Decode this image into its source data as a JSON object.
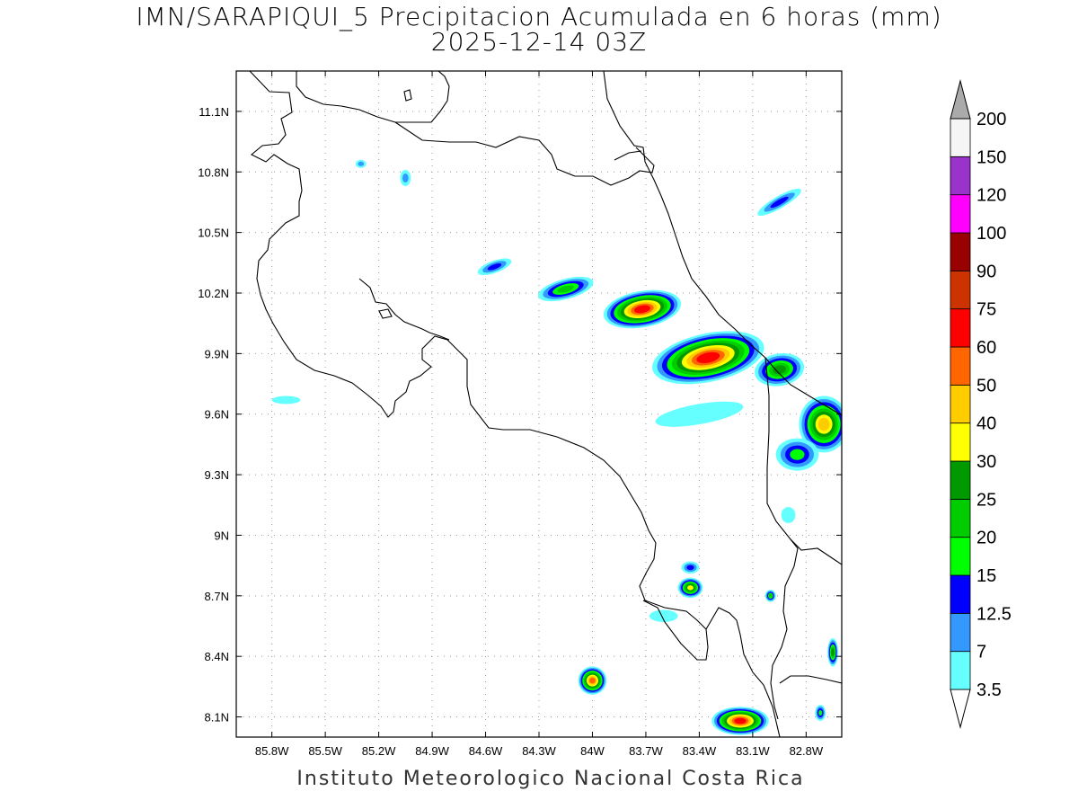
{
  "title": {
    "line1": "IMN/SARAPIQUI_5 Precipitacion Acumulada en 6 horas (mm)",
    "line2": "2025-12-14 03Z"
  },
  "footer": "Instituto Meteorologico Nacional Costa Rica",
  "map": {
    "lon_range": [
      -86.0,
      -82.6
    ],
    "lat_range": [
      8.0,
      11.3
    ],
    "lat_ticks": [
      {
        "value": 11.1,
        "label": "11.1N"
      },
      {
        "value": 10.8,
        "label": "10.8N"
      },
      {
        "value": 10.5,
        "label": "10.5N"
      },
      {
        "value": 10.2,
        "label": "10.2N"
      },
      {
        "value": 9.9,
        "label": "9.9N"
      },
      {
        "value": 9.6,
        "label": "9.6N"
      },
      {
        "value": 9.3,
        "label": "9.3N"
      },
      {
        "value": 9.0,
        "label": "9N"
      },
      {
        "value": 8.7,
        "label": "8.7N"
      },
      {
        "value": 8.4,
        "label": "8.4N"
      },
      {
        "value": 8.1,
        "label": "8.1N"
      }
    ],
    "lon_ticks": [
      {
        "value": -85.8,
        "label": "85.8W"
      },
      {
        "value": -85.5,
        "label": "85.5W"
      },
      {
        "value": -85.2,
        "label": "85.2W"
      },
      {
        "value": -84.9,
        "label": "84.9W"
      },
      {
        "value": -84.6,
        "label": "84.6W"
      },
      {
        "value": -84.3,
        "label": "84.3W"
      },
      {
        "value": -84.0,
        "label": "84W"
      },
      {
        "value": -83.7,
        "label": "83.7W"
      },
      {
        "value": -83.4,
        "label": "83.4W"
      },
      {
        "value": -83.1,
        "label": "83.1W"
      },
      {
        "value": -82.8,
        "label": "82.8W"
      }
    ],
    "grid": true
  },
  "colorbar": {
    "unit": "mm",
    "levels": [
      {
        "label": "3.5",
        "color": "#66ffff"
      },
      {
        "label": "7",
        "color": "#3399ff"
      },
      {
        "label": "12.5",
        "color": "#0000ff"
      },
      {
        "label": "15",
        "color": "#00ff00"
      },
      {
        "label": "20",
        "color": "#00cc00"
      },
      {
        "label": "25",
        "color": "#009900"
      },
      {
        "label": "30",
        "color": "#ffff00"
      },
      {
        "label": "40",
        "color": "#ffcc00"
      },
      {
        "label": "50",
        "color": "#ff6600"
      },
      {
        "label": "60",
        "color": "#ff0000"
      },
      {
        "label": "75",
        "color": "#cc3300"
      },
      {
        "label": "90",
        "color": "#990000"
      },
      {
        "label": "100",
        "color": "#ff00ff"
      },
      {
        "label": "120",
        "color": "#9933cc"
      },
      {
        "label": "150",
        "color": "#f5f5f5"
      },
      {
        "label": "200",
        "color": "#aaaaaa"
      }
    ]
  },
  "precip_cells": [
    {
      "lon": -83.72,
      "lat": 10.12,
      "rx": 0.22,
      "ry": 0.09,
      "rot": -10,
      "peak": 60
    },
    {
      "lon": -83.35,
      "lat": 9.88,
      "rx": 0.32,
      "ry": 0.12,
      "rot": -12,
      "peak": 60
    },
    {
      "lon": -82.95,
      "lat": 9.82,
      "rx": 0.14,
      "ry": 0.08,
      "rot": -10,
      "peak": 25
    },
    {
      "lon": -82.7,
      "lat": 9.55,
      "rx": 0.14,
      "ry": 0.14,
      "rot": 0,
      "peak": 40
    },
    {
      "lon": -82.85,
      "lat": 9.4,
      "rx": 0.12,
      "ry": 0.08,
      "rot": 0,
      "peak": 15
    },
    {
      "lon": -84.15,
      "lat": 10.22,
      "rx": 0.16,
      "ry": 0.05,
      "rot": -15,
      "peak": 20
    },
    {
      "lon": -84.55,
      "lat": 10.33,
      "rx": 0.1,
      "ry": 0.03,
      "rot": -20,
      "peak": 12.5
    },
    {
      "lon": -82.95,
      "lat": 10.65,
      "rx": 0.14,
      "ry": 0.03,
      "rot": -30,
      "peak": 12.5
    },
    {
      "lon": -83.45,
      "lat": 8.74,
      "rx": 0.07,
      "ry": 0.05,
      "rot": 0,
      "peak": 30
    },
    {
      "lon": -83.45,
      "lat": 8.84,
      "rx": 0.05,
      "ry": 0.03,
      "rot": 0,
      "peak": 12.5
    },
    {
      "lon": -84.0,
      "lat": 8.28,
      "rx": 0.08,
      "ry": 0.07,
      "rot": 0,
      "peak": 50
    },
    {
      "lon": -83.17,
      "lat": 8.08,
      "rx": 0.16,
      "ry": 0.07,
      "rot": 0,
      "peak": 60
    },
    {
      "lon": -82.65,
      "lat": 8.42,
      "rx": 0.03,
      "ry": 0.07,
      "rot": 0,
      "peak": 25
    },
    {
      "lon": -83.0,
      "lat": 8.7,
      "rx": 0.03,
      "ry": 0.03,
      "rot": 0,
      "peak": 20
    },
    {
      "lon": -82.72,
      "lat": 8.12,
      "rx": 0.03,
      "ry": 0.04,
      "rot": 0,
      "peak": 15
    },
    {
      "lon": -85.05,
      "lat": 10.77,
      "rx": 0.03,
      "ry": 0.04,
      "rot": 0,
      "peak": 7
    },
    {
      "lon": -85.3,
      "lat": 10.84,
      "rx": 0.03,
      "ry": 0.02,
      "rot": 0,
      "peak": 7
    },
    {
      "lon": -85.72,
      "lat": 9.67,
      "rx": 0.08,
      "ry": 0.02,
      "rot": 0,
      "peak": 3.5
    },
    {
      "lon": -83.4,
      "lat": 9.6,
      "rx": 0.25,
      "ry": 0.05,
      "rot": -10,
      "peak": 3.5
    },
    {
      "lon": -82.9,
      "lat": 9.1,
      "rx": 0.04,
      "ry": 0.04,
      "rot": 0,
      "peak": 3.5
    },
    {
      "lon": -83.6,
      "lat": 8.6,
      "rx": 0.08,
      "ry": 0.03,
      "rot": 0,
      "peak": 3.5
    }
  ]
}
